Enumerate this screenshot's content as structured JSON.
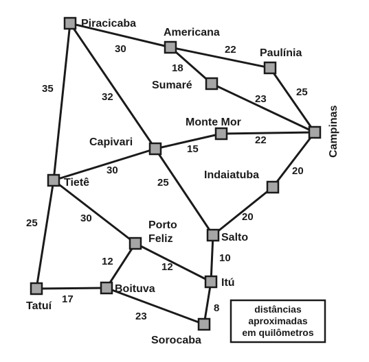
{
  "cities": {
    "piracicaba": "Piracicaba",
    "americana": "Americana",
    "paulinia": "Paulínia",
    "sumare": "Sumaré",
    "campinas": "Campinas",
    "monte_mor": "Monte Mor",
    "capivari": "Capivari",
    "indaiatuba": "Indaiatuba",
    "tiete": "Tietê",
    "porto_feliz_line1": "Porto",
    "porto_feliz_line2": "Feliz",
    "salto": "Salto",
    "boituva": "Boituva",
    "itu": "Itú",
    "tatui": "Tatuí",
    "sorocaba": "Sorocaba"
  },
  "roads": [
    {
      "from": "Piracicaba",
      "to": "Americana",
      "km": "30"
    },
    {
      "from": "Americana",
      "to": "Paulínia",
      "km": "22"
    },
    {
      "from": "Americana",
      "to": "Sumaré",
      "km": "18"
    },
    {
      "from": "Paulínia",
      "to": "Campinas",
      "km": "25"
    },
    {
      "from": "Sumaré",
      "to": "Campinas",
      "km": "23"
    },
    {
      "from": "Piracicaba",
      "to": "Tietê",
      "km": "35"
    },
    {
      "from": "Piracicaba",
      "to": "Capivari",
      "km": "32"
    },
    {
      "from": "Capivari",
      "to": "Monte Mor",
      "km": "15"
    },
    {
      "from": "Monte Mor",
      "to": "Campinas",
      "km": "22"
    },
    {
      "from": "Capivari",
      "to": "Tietê",
      "km": "30"
    },
    {
      "from": "Capivari",
      "to": "Salto",
      "km": "25"
    },
    {
      "from": "Campinas",
      "to": "Indaiatuba",
      "km": "20"
    },
    {
      "from": "Indaiatuba",
      "to": "Salto",
      "km": "20"
    },
    {
      "from": "Tietê",
      "to": "Porto Feliz",
      "km": "30"
    },
    {
      "from": "Tietê",
      "to": "Tatuí",
      "km": "25"
    },
    {
      "from": "Salto",
      "to": "Itú",
      "km": "10"
    },
    {
      "from": "Porto Feliz",
      "to": "Boituva",
      "km": "12"
    },
    {
      "from": "Porto Feliz",
      "to": "Itú",
      "km": "12"
    },
    {
      "from": "Tatuí",
      "to": "Boituva",
      "km": "17"
    },
    {
      "from": "Itú",
      "to": "Sorocaba",
      "km": "8"
    },
    {
      "from": "Boituva",
      "to": "Sorocaba",
      "km": "23"
    }
  ],
  "legend": {
    "line1": "distâncias",
    "line2": "aproximadas",
    "line3": "em quilômetros"
  },
  "colors": {
    "node_fill": "#a6a6a6",
    "ink": "#1a1a1a",
    "background": "#ffffff"
  }
}
